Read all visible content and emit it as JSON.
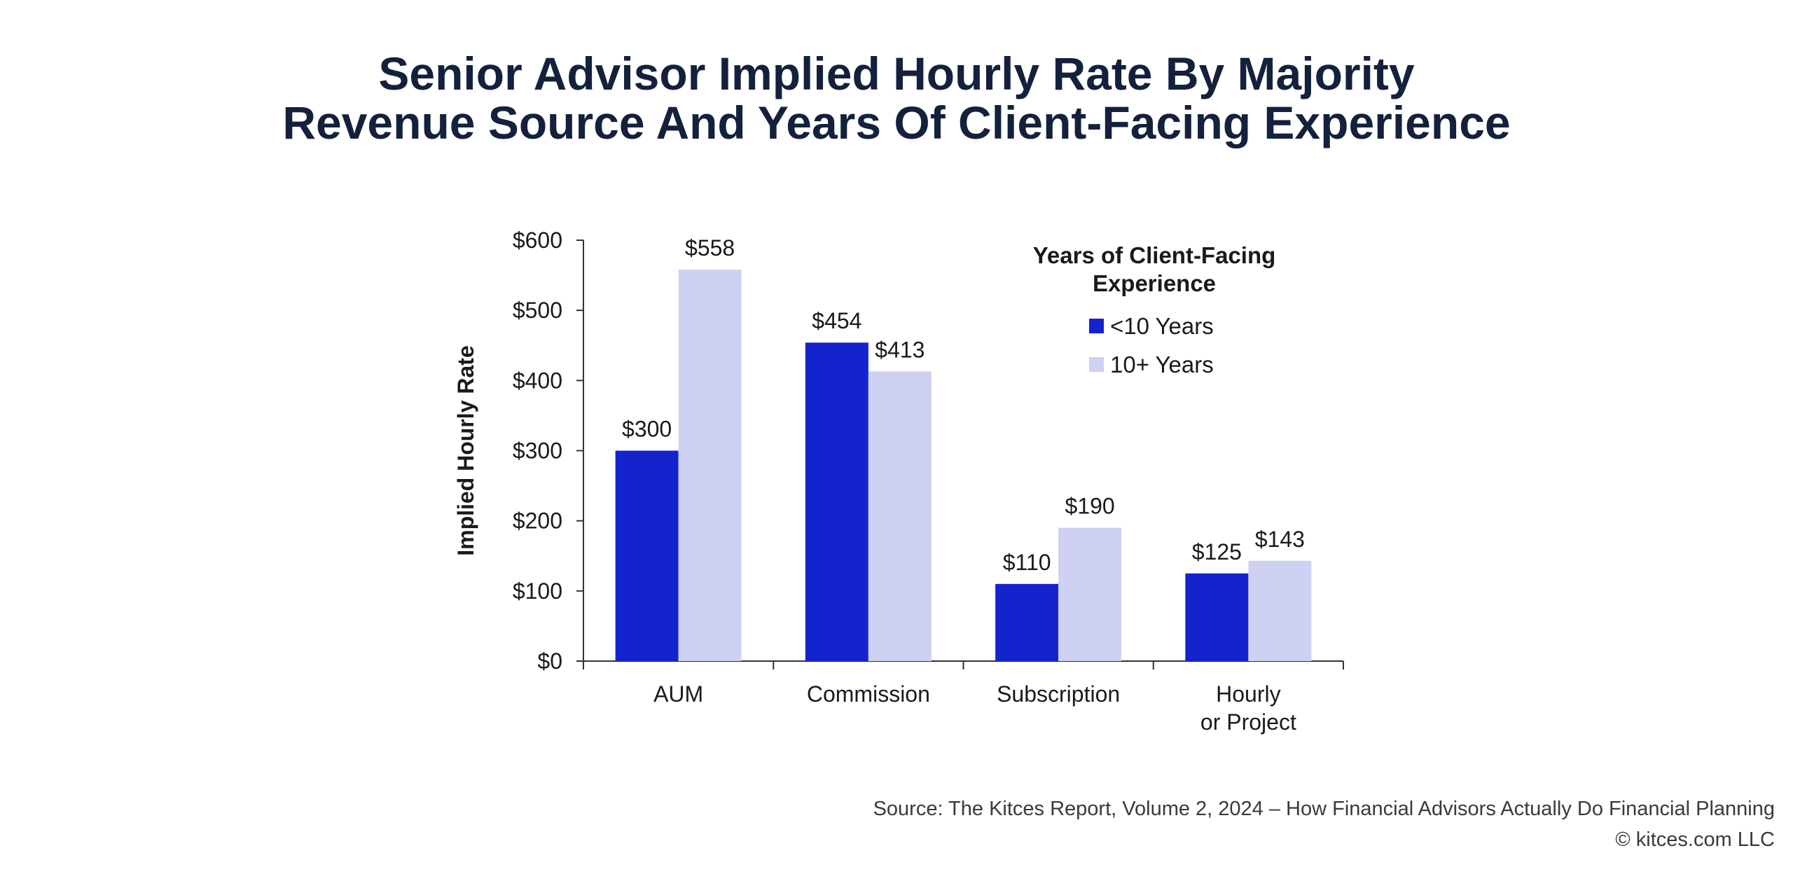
{
  "title": {
    "line1": "Senior Advisor Implied Hourly Rate By Majority",
    "line2": "Revenue Source And Years Of Client-Facing Experience"
  },
  "footer": {
    "source": "Source: The Kitces Report, Volume 2, 2024 – How Financial Advisors Actually Do Financial Planning",
    "copyright": "© kitces.com LLC"
  },
  "chart_data": {
    "type": "bar",
    "ylabel": "Implied Hourly Rate",
    "xlabel": "",
    "ylim": [
      0,
      600
    ],
    "yticks": [
      0,
      100,
      200,
      300,
      400,
      500,
      600
    ],
    "ytick_labels": [
      "$0",
      "$100",
      "$200",
      "$300",
      "$400",
      "$500",
      "$600"
    ],
    "categories": [
      [
        "AUM"
      ],
      [
        "Commission"
      ],
      [
        "Subscription"
      ],
      [
        "Hourly",
        "or Project"
      ]
    ],
    "series": [
      {
        "name": "<10 Years",
        "color": "#1423cc",
        "values": [
          300,
          454,
          110,
          125
        ],
        "labels": [
          "$300",
          "$454",
          "$110",
          "$125"
        ]
      },
      {
        "name": "10+ Years",
        "color": "#cfd1f3",
        "values": [
          558,
          413,
          190,
          143
        ],
        "labels": [
          "$558",
          "$413",
          "$190",
          "$143"
        ]
      }
    ],
    "legend": {
      "title": [
        "Years of Client-Facing",
        "Experience"
      ],
      "placement": "top-right"
    },
    "grid": false
  }
}
